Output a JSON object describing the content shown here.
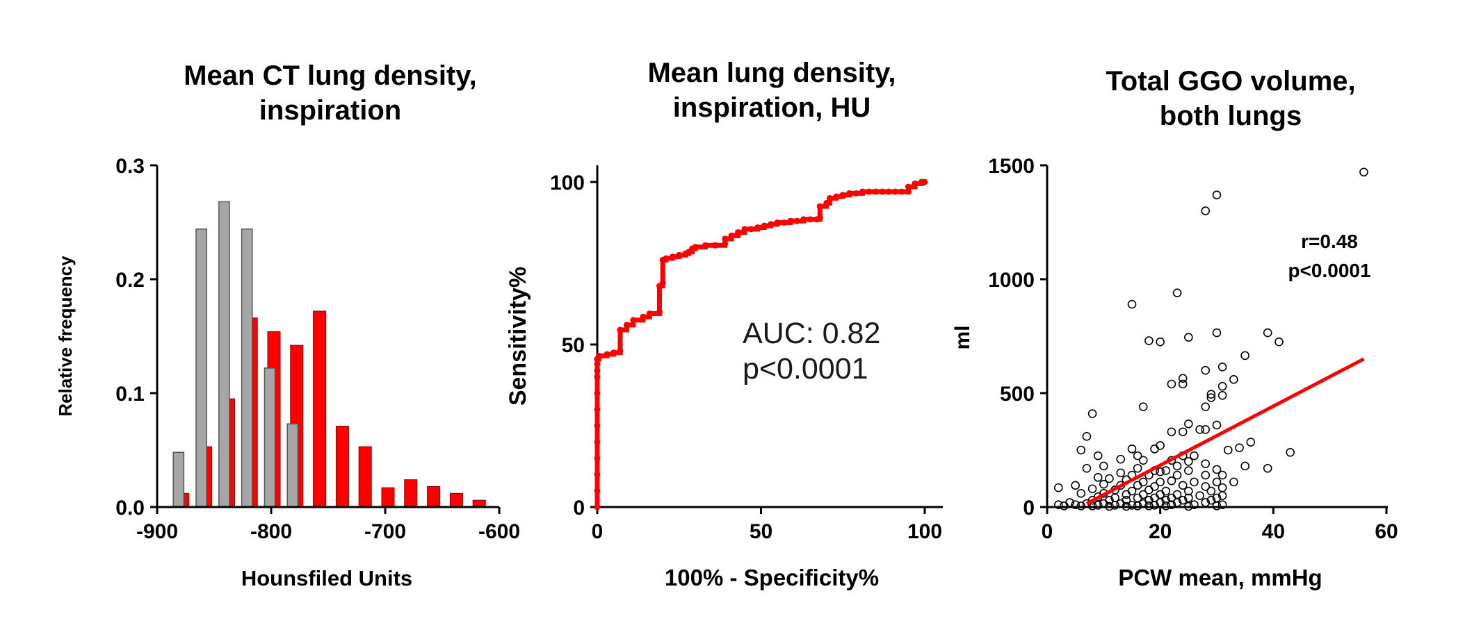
{
  "colors": {
    "red": "#ff0000",
    "gray": "#a6a6a6",
    "axis": "#000000"
  },
  "chart_data": [
    {
      "type": "bar",
      "title_lines": [
        "Mean CT lung density,",
        "inspiration"
      ],
      "xlabel": "Hounsfiled Units",
      "ylabel": "Relative frequency",
      "xlim": [
        -900,
        -600
      ],
      "ylim": [
        0,
        0.3
      ],
      "xticks": [
        -900,
        -800,
        -700,
        -600
      ],
      "yticks": [
        0.0,
        0.1,
        0.2,
        0.3
      ],
      "xtick_labels": [
        "-900",
        "-800",
        "-700",
        "-600"
      ],
      "ytick_labels": [
        "0.0",
        "0.1",
        "0.2",
        "0.3"
      ],
      "bin_width": 20,
      "series": [
        {
          "color": "#ff0000",
          "x": [
            -880,
            -860,
            -840,
            -820,
            -800,
            -780,
            -760,
            -740,
            -720,
            -700,
            -680,
            -660,
            -640,
            -620
          ],
          "values": [
            0.012,
            0.053,
            0.095,
            0.166,
            0.154,
            0.142,
            0.172,
            0.071,
            0.053,
            0.017,
            0.024,
            0.018,
            0.012,
            0.006
          ]
        },
        {
          "color": "#a6a6a6",
          "x": [
            -880,
            -860,
            -840,
            -820,
            -800,
            -780
          ],
          "values": [
            0.048,
            0.244,
            0.268,
            0.244,
            0.122,
            0.073
          ]
        }
      ]
    },
    {
      "type": "line",
      "title_lines": [
        "Mean lung density,",
        "inspiration, HU"
      ],
      "xlabel": "100% - Specificity%",
      "ylabel": "Sensitivity%",
      "xlim": [
        0,
        100
      ],
      "ylim": [
        0,
        100
      ],
      "xticks": [
        0,
        50,
        100
      ],
      "yticks": [
        0,
        50,
        100
      ],
      "xtick_labels": [
        "0",
        "50",
        "100"
      ],
      "ytick_labels": [
        "0",
        "50",
        "100"
      ],
      "annotations": [
        "AUC: 0.82",
        "p<0.0001"
      ],
      "series": [
        {
          "color": "#ff0000",
          "x": [
            0,
            0,
            0,
            0,
            0,
            0,
            0,
            0,
            0,
            0,
            0,
            0,
            0.5,
            3,
            5,
            7,
            7,
            9,
            11,
            14,
            16,
            19,
            19,
            20,
            20,
            21,
            23,
            25,
            27,
            28,
            29,
            30,
            33,
            36,
            39,
            39,
            41,
            43,
            45,
            47,
            49,
            51,
            53,
            55,
            57,
            59,
            61,
            63,
            65,
            67,
            68,
            68,
            70,
            71,
            73,
            75,
            77,
            79,
            81,
            83,
            85,
            87,
            89,
            91,
            93,
            95,
            95,
            97,
            99,
            100
          ],
          "y": [
            0,
            5,
            10,
            15,
            20,
            25,
            30,
            35,
            40,
            42,
            44,
            45.5,
            46.5,
            47,
            47.5,
            48,
            54.5,
            56,
            57.5,
            58.5,
            59.5,
            60,
            68,
            69,
            76,
            76.5,
            77,
            77.5,
            78,
            78.5,
            79.5,
            80,
            80.5,
            80.5,
            81,
            82.5,
            83.5,
            84.5,
            85.5,
            85.5,
            86,
            86.5,
            87,
            87.5,
            87.5,
            88,
            88,
            88.5,
            88.5,
            88.5,
            89,
            92.5,
            93.5,
            95,
            95.5,
            96,
            96.5,
            96.5,
            97,
            97,
            97,
            97,
            97,
            97,
            97,
            97,
            98.5,
            99.5,
            100,
            100
          ]
        }
      ]
    },
    {
      "type": "scatter",
      "title_lines": [
        "Total GGO volume,",
        "both lungs"
      ],
      "xlabel": "PCW mean, mmHg",
      "ylabel": "ml",
      "xlim": [
        0,
        60
      ],
      "ylim": [
        0,
        1500
      ],
      "xticks": [
        0,
        20,
        40,
        60
      ],
      "yticks": [
        0,
        500,
        1000,
        1500
      ],
      "xtick_labels": [
        "0",
        "20",
        "40",
        "60"
      ],
      "ytick_labels": [
        "0",
        "500",
        "1000",
        "1500"
      ],
      "annotations": [
        "r=0.48",
        "p<0.0001"
      ],
      "regression": {
        "x": [
          7,
          56
        ],
        "y": [
          15,
          650
        ],
        "color": "#ff0000"
      },
      "points": [
        [
          56,
          1470
        ],
        [
          30,
          1370
        ],
        [
          28,
          1300
        ],
        [
          23,
          940
        ],
        [
          15,
          890
        ],
        [
          39,
          765
        ],
        [
          30,
          765
        ],
        [
          41,
          725
        ],
        [
          18,
          730
        ],
        [
          20,
          725
        ],
        [
          25,
          745
        ],
        [
          35,
          665
        ],
        [
          28,
          600
        ],
        [
          31,
          615
        ],
        [
          24,
          540
        ],
        [
          22,
          540
        ],
        [
          24,
          565
        ],
        [
          33,
          560
        ],
        [
          29,
          480
        ],
        [
          31,
          530
        ],
        [
          29,
          495
        ],
        [
          31,
          490
        ],
        [
          17,
          440
        ],
        [
          28,
          440
        ],
        [
          8,
          410
        ],
        [
          25,
          365
        ],
        [
          30,
          360
        ],
        [
          27,
          340
        ],
        [
          28,
          340
        ],
        [
          22,
          330
        ],
        [
          24,
          330
        ],
        [
          7,
          310
        ],
        [
          36,
          285
        ],
        [
          34,
          260
        ],
        [
          32,
          250
        ],
        [
          15,
          255
        ],
        [
          20,
          270
        ],
        [
          19,
          255
        ],
        [
          6,
          250
        ],
        [
          43,
          240
        ],
        [
          9,
          225
        ],
        [
          16,
          225
        ],
        [
          24,
          225
        ],
        [
          26,
          225
        ],
        [
          13,
          210
        ],
        [
          17,
          205
        ],
        [
          22,
          205
        ],
        [
          25,
          200
        ],
        [
          28,
          190
        ],
        [
          10,
          180
        ],
        [
          23,
          180
        ],
        [
          35,
          180
        ],
        [
          7,
          170
        ],
        [
          16,
          170
        ],
        [
          19,
          160
        ],
        [
          21,
          160
        ],
        [
          25,
          160
        ],
        [
          39,
          170
        ],
        [
          30,
          165
        ],
        [
          20,
          155
        ],
        [
          13,
          150
        ],
        [
          15,
          140
        ],
        [
          18,
          140
        ],
        [
          23,
          140
        ],
        [
          28,
          140
        ],
        [
          31,
          140
        ],
        [
          9,
          130
        ],
        [
          11,
          125
        ],
        [
          14,
          120
        ],
        [
          17,
          110
        ],
        [
          20,
          110
        ],
        [
          22,
          115
        ],
        [
          26,
          110
        ],
        [
          30,
          110
        ],
        [
          33,
          110
        ],
        [
          5,
          95
        ],
        [
          10,
          100
        ],
        [
          13,
          95
        ],
        [
          16,
          95
        ],
        [
          19,
          90
        ],
        [
          24,
          95
        ],
        [
          28,
          90
        ],
        [
          31,
          85
        ],
        [
          2,
          85
        ],
        [
          8,
          80
        ],
        [
          12,
          75
        ],
        [
          15,
          70
        ],
        [
          18,
          75
        ],
        [
          21,
          70
        ],
        [
          25,
          70
        ],
        [
          29,
          70
        ],
        [
          6,
          60
        ],
        [
          10,
          60
        ],
        [
          14,
          55
        ],
        [
          17,
          55
        ],
        [
          20,
          55
        ],
        [
          23,
          55
        ],
        [
          27,
          50
        ],
        [
          31,
          50
        ],
        [
          9,
          45
        ],
        [
          12,
          40
        ],
        [
          16,
          40
        ],
        [
          19,
          40
        ],
        [
          22,
          40
        ],
        [
          25,
          40
        ],
        [
          30,
          40
        ],
        [
          8,
          30
        ],
        [
          11,
          30
        ],
        [
          14,
          30
        ],
        [
          18,
          30
        ],
        [
          21,
          30
        ],
        [
          24,
          30
        ],
        [
          29,
          30
        ],
        [
          4,
          20
        ],
        [
          7,
          15
        ],
        [
          10,
          15
        ],
        [
          13,
          15
        ],
        [
          17,
          15
        ],
        [
          20,
          20
        ],
        [
          23,
          20
        ],
        [
          28,
          20
        ],
        [
          2,
          10
        ],
        [
          5,
          10
        ],
        [
          9,
          8
        ],
        [
          12,
          8
        ],
        [
          15,
          8
        ],
        [
          19,
          8
        ],
        [
          22,
          10
        ],
        [
          26,
          10
        ],
        [
          31,
          10
        ],
        [
          3,
          5
        ],
        [
          6,
          5
        ],
        [
          8,
          5
        ],
        [
          11,
          3
        ],
        [
          14,
          3
        ],
        [
          16,
          5
        ],
        [
          18,
          5
        ],
        [
          21,
          5
        ],
        [
          25,
          3
        ],
        [
          30,
          5
        ]
      ]
    }
  ]
}
